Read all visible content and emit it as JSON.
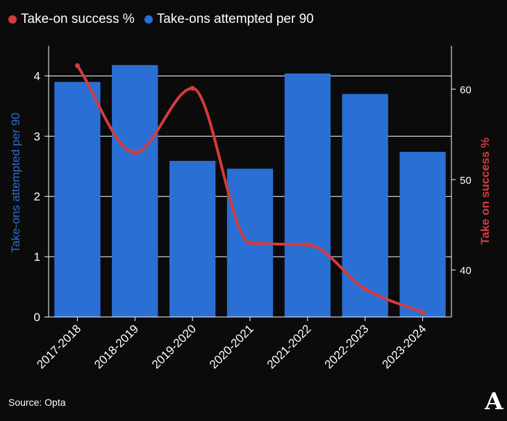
{
  "legend": [
    {
      "label": "Take-on success %",
      "color": "#d63b3b"
    },
    {
      "label": "Take-ons attempted per 90",
      "color": "#2a6fd4"
    }
  ],
  "source": "Source: Opta",
  "logo": "A",
  "colors": {
    "bar": "#2a6fd4",
    "line": "#d63b3b",
    "background": "#0b0b0b",
    "grid": "#ffffff"
  },
  "chart_data": {
    "type": "bar",
    "categories": [
      "2017-2018",
      "2018-2019",
      "2019-2020",
      "2020-2021",
      "2021-2022",
      "2022-2023",
      "2023-2024"
    ],
    "series": [
      {
        "name": "Take-ons attempted per 90",
        "type": "bar",
        "axis": "left",
        "values": [
          3.9,
          4.18,
          2.59,
          2.46,
          4.04,
          3.7,
          2.74
        ]
      },
      {
        "name": "Take-on success %",
        "type": "line",
        "axis": "right",
        "smooth": true,
        "values": [
          62.6,
          53.0,
          60.1,
          43.0,
          42.8,
          37.9,
          35.3
        ]
      }
    ],
    "ylabel": "Take-ons attempted per 90",
    "y2label": "Take on success %",
    "ylim": [
      0,
      4.5
    ],
    "yticks": [
      0,
      1,
      2,
      3,
      4
    ],
    "y2lim": [
      34.8,
      64.8
    ],
    "y2ticks": [
      40,
      50,
      60
    ],
    "grid": true,
    "legend_position": "top-left"
  }
}
